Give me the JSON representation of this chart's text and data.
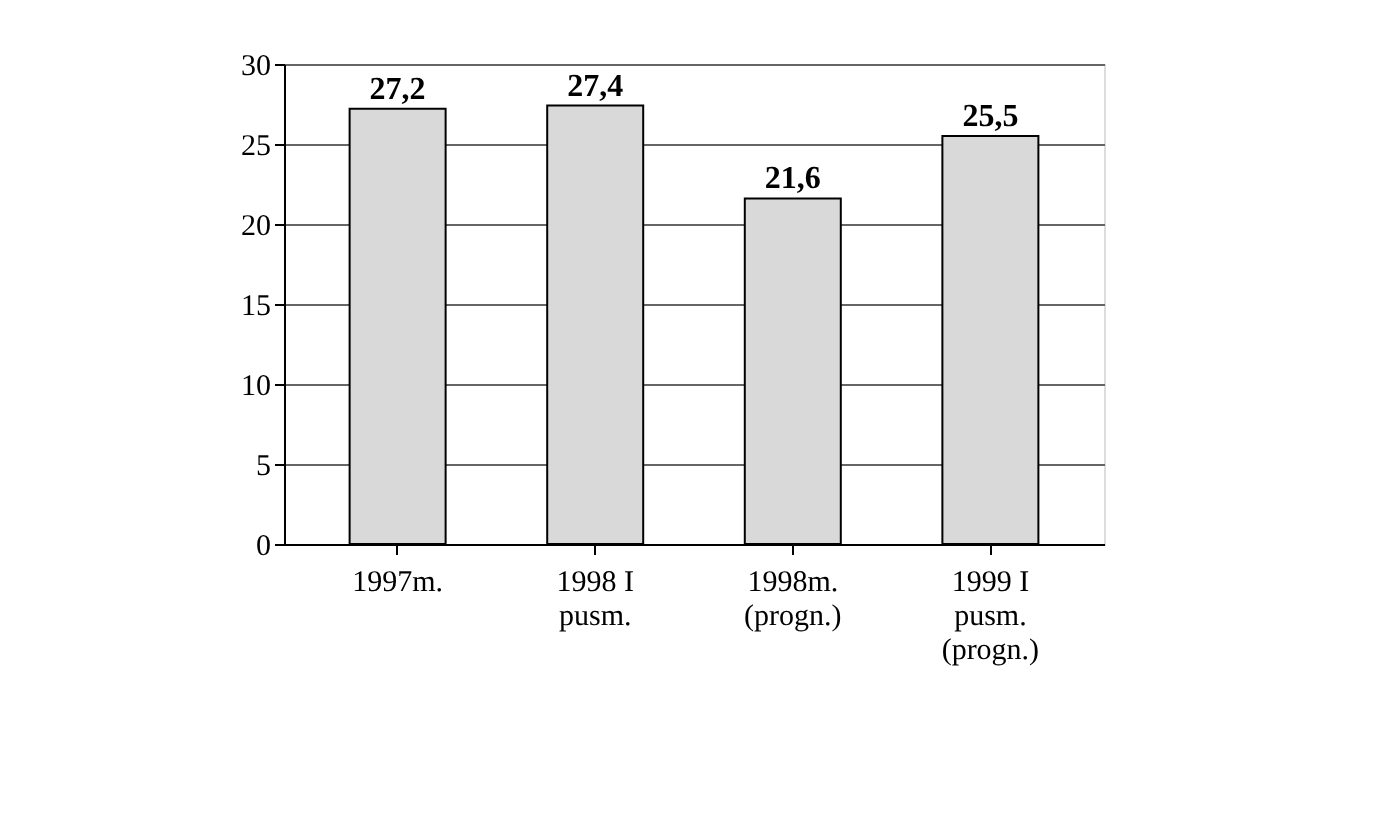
{
  "chart_data": {
    "type": "bar",
    "categories": [
      "1997m.",
      "1998 I\npusm.",
      "1998m.\n(progn.)",
      "1999 I\npusm.\n(progn.)"
    ],
    "values": [
      27.2,
      27.4,
      21.6,
      25.5
    ],
    "color": "#d9d9d9",
    "ylim": [
      0,
      30
    ],
    "yticks": [
      0,
      5,
      10,
      15,
      20,
      25,
      30
    ],
    "value_labels": [
      "27,2",
      "27,4",
      "21,6",
      "25,5"
    ],
    "grid": "y"
  }
}
